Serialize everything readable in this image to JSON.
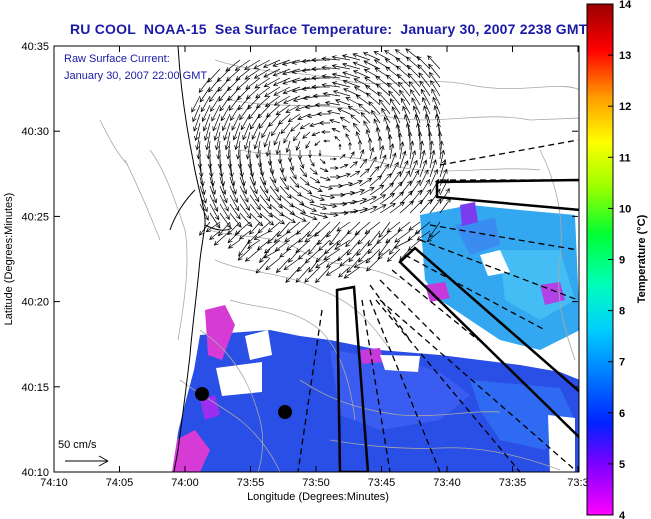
{
  "title": "RU COOL  NOAA-15  Sea Surface Temperature:  January 30, 2007 2238 GMT",
  "overlay": {
    "line1": "Raw Surface Current:",
    "line2": "January 30, 2007 22:00 GMT",
    "scale_label": "50 cm/s"
  },
  "axes": {
    "xlabel": "Longitude (Degrees:Minutes)",
    "ylabel": "Latitude (Degrees:Minutes)",
    "x_ticks": [
      "74:10",
      "74:05",
      "74:00",
      "73:55",
      "73:50",
      "73:45",
      "73:40",
      "73:35",
      "73:3"
    ],
    "y_ticks": [
      "40:35",
      "40:30",
      "40:25",
      "40:20",
      "40:15",
      "40:10"
    ]
  },
  "colorbar": {
    "label": "Temperature (°C)",
    "ticks": [
      "14",
      "13",
      "12",
      "11",
      "10",
      "9",
      "8",
      "7",
      "6",
      "5",
      "4"
    ],
    "min": 4,
    "max": 14,
    "colors": [
      "#ff00ff",
      "#7b00ff",
      "#0022ff",
      "#0077ff",
      "#00ccff",
      "#00ffbb",
      "#00ff33",
      "#99ff00",
      "#ffff00",
      "#ff9900",
      "#ff0000",
      "#990000"
    ]
  },
  "colors": {
    "title": "#1a1aa6",
    "sst_main": "#2a4fe6",
    "sst_east": "#33a8f0",
    "sst_cold": "#d63bd6"
  }
}
